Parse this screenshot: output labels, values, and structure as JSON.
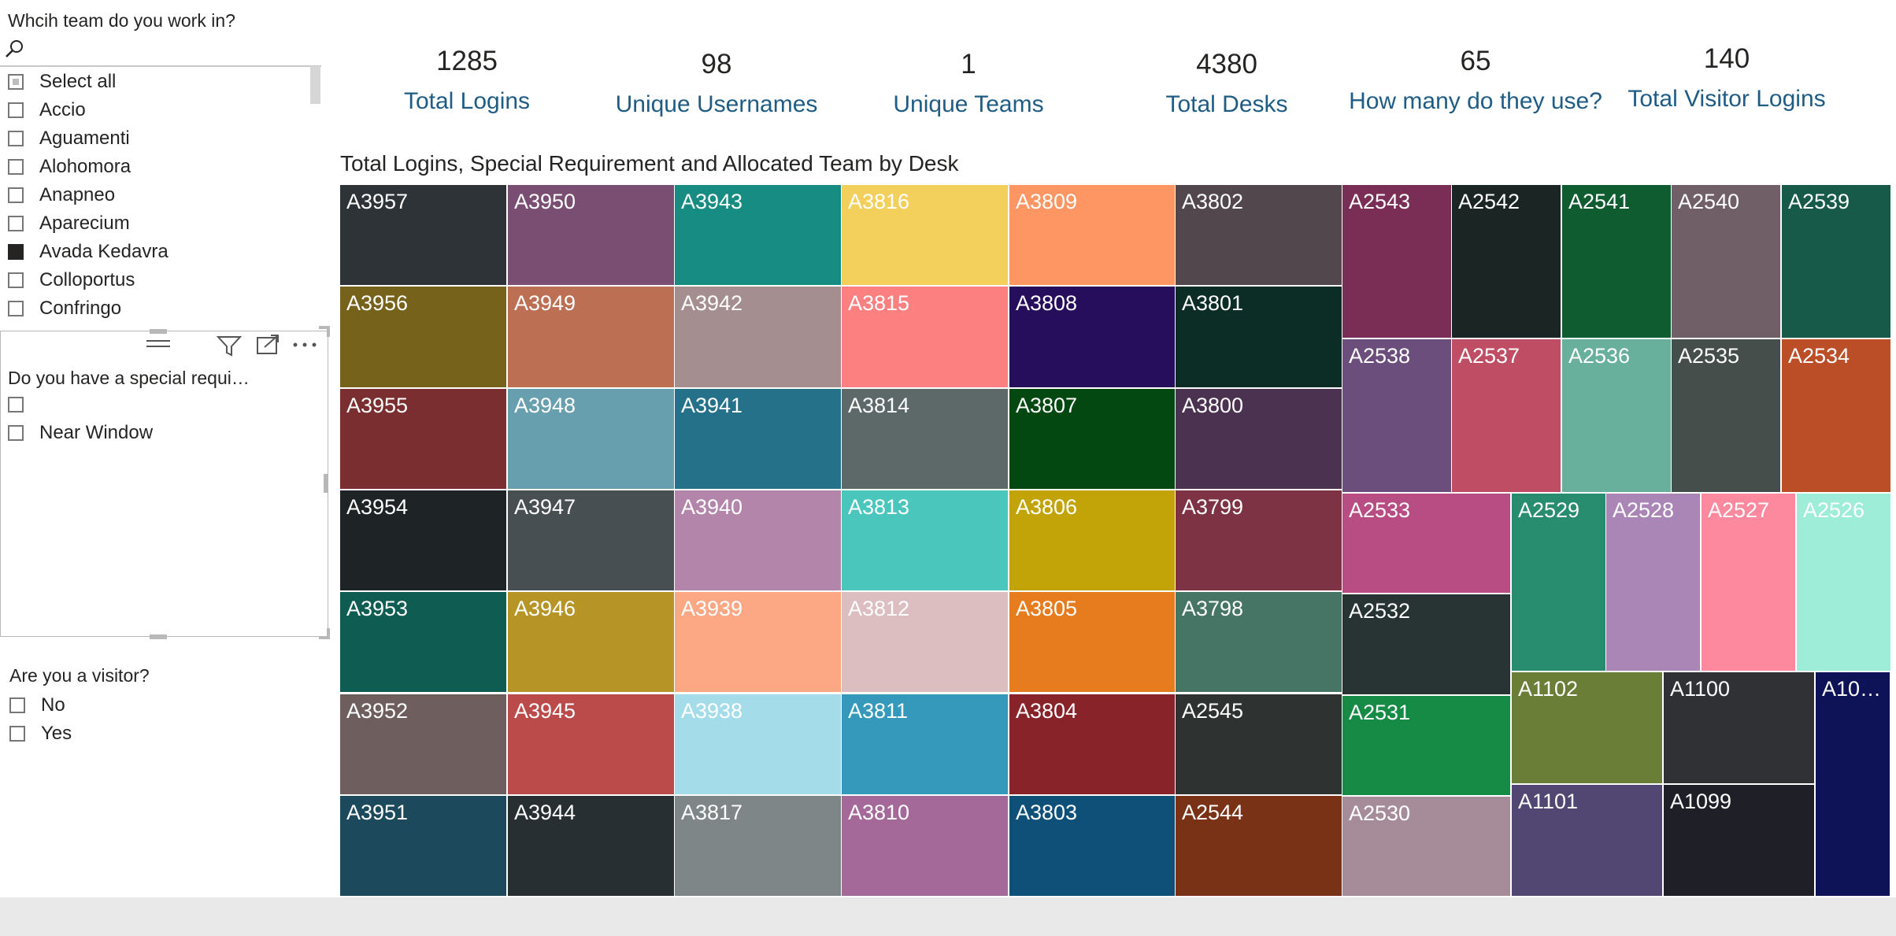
{
  "team_slicer": {
    "title": "Whcih team do you work in?",
    "search_icon": "search-icon",
    "items": [
      {
        "label": "Select all",
        "state": "partial"
      },
      {
        "label": "Accio",
        "state": "unchecked"
      },
      {
        "label": "Aguamenti",
        "state": "unchecked"
      },
      {
        "label": "Alohomora",
        "state": "unchecked"
      },
      {
        "label": "Anapneo",
        "state": "unchecked"
      },
      {
        "label": "Aparecium",
        "state": "unchecked"
      },
      {
        "label": "Avada Kedavra",
        "state": "checked"
      },
      {
        "label": "Colloportus",
        "state": "unchecked"
      },
      {
        "label": "Confringo",
        "state": "unchecked"
      }
    ]
  },
  "special_slicer": {
    "title": "Do you have a special requi…",
    "toolbar_icons": [
      "drag-handle-icon",
      "filter-icon",
      "focus-mode-icon",
      "more-options-icon"
    ],
    "items": [
      {
        "label": "",
        "state": "unchecked"
      },
      {
        "label": "Near Window",
        "state": "unchecked"
      }
    ]
  },
  "visitor_slicer": {
    "title": "Are you a visitor?",
    "items": [
      {
        "label": "No",
        "state": "unchecked"
      },
      {
        "label": "Yes",
        "state": "unchecked"
      }
    ]
  },
  "cards": [
    {
      "value": "1285",
      "label": "Total Logins"
    },
    {
      "value": "98",
      "label": "Unique Usernames"
    },
    {
      "value": "1",
      "label": "Unique Teams"
    },
    {
      "value": "4380",
      "label": "Total Desks"
    },
    {
      "value": "65",
      "label": "How many do they use?"
    },
    {
      "value": "140",
      "label": "Total Visitor Logins"
    }
  ],
  "treemap": {
    "title": "Total Logins, Special Requirement and Allocated Team by Desk"
  },
  "chart_data": {
    "type": "treemap",
    "title": "Total Logins, Special Requirement and Allocated Team by Desk",
    "groups": [
      {
        "tiles": [
          {
            "label": "A3957",
            "color": "#2e3338"
          },
          {
            "label": "A3956",
            "color": "#76621b"
          },
          {
            "label": "A3955",
            "color": "#7b2e30"
          },
          {
            "label": "A3954",
            "color": "#1e2326"
          },
          {
            "label": "A3953",
            "color": "#0e5c52"
          },
          {
            "label": "A3952",
            "color": "#6e5f5e"
          },
          {
            "label": "A3951",
            "color": "#1c4a5c"
          }
        ]
      },
      {
        "tiles": [
          {
            "label": "A3950",
            "color": "#7a4e72"
          },
          {
            "label": "A3949",
            "color": "#bd6f53"
          },
          {
            "label": "A3948",
            "color": "#679faf"
          },
          {
            "label": "A3947",
            "color": "#484f53"
          },
          {
            "label": "A3946",
            "color": "#b69526"
          },
          {
            "label": "A3945",
            "color": "#bb4b4b"
          },
          {
            "label": "A3944",
            "color": "#272f33"
          }
        ]
      },
      {
        "tiles": [
          {
            "label": "A3943",
            "color": "#168c82"
          },
          {
            "label": "A3942",
            "color": "#a58e8f"
          },
          {
            "label": "A3941",
            "color": "#26718a"
          },
          {
            "label": "A3940",
            "color": "#b385ab"
          },
          {
            "label": "A3939",
            "color": "#fda885"
          },
          {
            "label": "A3938",
            "color": "#a4dcea"
          },
          {
            "label": "A3817",
            "color": "#7e8688"
          }
        ]
      },
      {
        "tiles": [
          {
            "label": "A3816",
            "color": "#f3d05c"
          },
          {
            "label": "A3815",
            "color": "#fd8081"
          },
          {
            "label": "A3814",
            "color": "#5d6869"
          },
          {
            "label": "A3813",
            "color": "#4bc6bc"
          },
          {
            "label": "A3812",
            "color": "#dcbdc0"
          },
          {
            "label": "A3811",
            "color": "#3499bb"
          },
          {
            "label": "A3810",
            "color": "#a46998"
          }
        ]
      },
      {
        "tiles": [
          {
            "label": "A3809",
            "color": "#fe9663"
          },
          {
            "label": "A3808",
            "color": "#270e5c"
          },
          {
            "label": "A3807",
            "color": "#034711"
          },
          {
            "label": "A3806",
            "color": "#c3a408"
          },
          {
            "label": "A3805",
            "color": "#e77c1e"
          },
          {
            "label": "A3804",
            "color": "#89232a"
          },
          {
            "label": "A3803",
            "color": "#0f5079"
          }
        ]
      },
      {
        "tiles": [
          {
            "label": "A3802",
            "color": "#52474d"
          },
          {
            "label": "A3801",
            "color": "#0b2d26"
          },
          {
            "label": "A3800",
            "color": "#4c3251"
          },
          {
            "label": "A3799",
            "color": "#7d3343"
          },
          {
            "label": "A3798",
            "color": "#467566"
          },
          {
            "label": "A2545",
            "color": "#2e3331"
          },
          {
            "label": "A2544",
            "color": "#7a3217"
          }
        ]
      }
    ],
    "right_block": {
      "top_rows": [
        [
          {
            "label": "A2543",
            "color": "#7a2d55"
          },
          {
            "label": "A2542",
            "color": "#1b2523"
          },
          {
            "label": "A2541",
            "color": "#105c31"
          },
          {
            "label": "A2540",
            "color": "#705f67"
          },
          {
            "label": "A2539",
            "color": "#175a4a"
          }
        ],
        [
          {
            "label": "A2538",
            "color": "#6b4e7c"
          },
          {
            "label": "A2537",
            "color": "#bf4e65"
          },
          {
            "label": "A2536",
            "color": "#68b09b"
          },
          {
            "label": "A2535",
            "color": "#454e4b"
          },
          {
            "label": "A2534",
            "color": "#bb4d27"
          }
        ]
      ],
      "left_col": [
        {
          "label": "A2533",
          "color": "#b84d83"
        },
        {
          "label": "A2532",
          "color": "#273433"
        },
        {
          "label": "A2531",
          "color": "#168b45"
        },
        {
          "label": "A2530",
          "color": "#a68c99"
        }
      ],
      "mid_row": [
        {
          "label": "A2529",
          "color": "#288c6e"
        },
        {
          "label": "A2528",
          "color": "#a986b6"
        },
        {
          "label": "A2527",
          "color": "#fd899f"
        },
        {
          "label": "A2526",
          "color": "#9eedd9"
        }
      ],
      "bottom_grid": [
        {
          "label": "A1102",
          "color": "#6a7e37"
        },
        {
          "label": "A1100",
          "color": "#2f3135"
        },
        {
          "label": "A1101",
          "color": "#524772"
        },
        {
          "label": "A1099",
          "color": "#1f1f28"
        }
      ],
      "last_tile": {
        "label": "A10…",
        "color": "#0e1256"
      }
    }
  }
}
